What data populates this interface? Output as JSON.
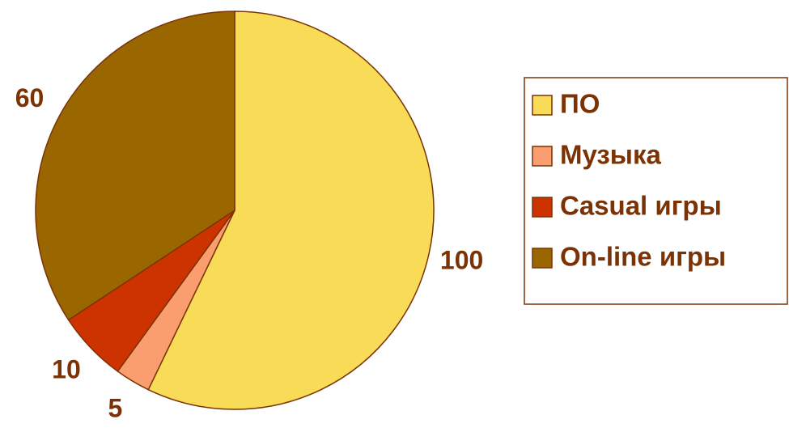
{
  "chart_data": {
    "type": "pie",
    "categories": [
      "ПО",
      "Музыка",
      "Casual игры",
      "On-line игры"
    ],
    "values": [
      100,
      5,
      10,
      60
    ],
    "colors": [
      "#f8dc58",
      "#fa9e70",
      "#cc3300",
      "#996600"
    ],
    "legend": "right"
  }
}
